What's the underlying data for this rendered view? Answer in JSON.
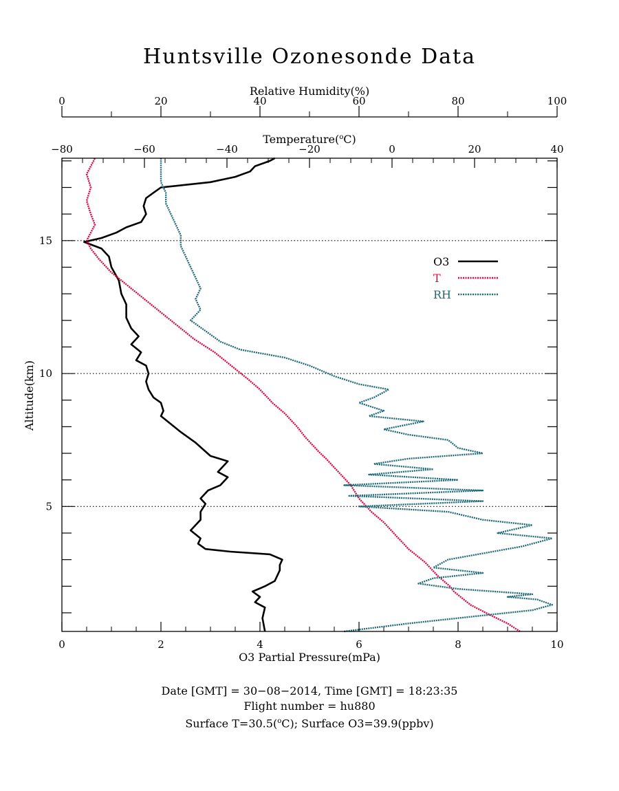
{
  "chart_data": {
    "type": "line",
    "title": "Huntsville Ozonesonde Data",
    "axes": {
      "bottom": {
        "label": "O3 Partial Pressure(mPa)",
        "min": 0,
        "max": 10,
        "ticks": [
          0,
          2,
          4,
          6,
          8,
          10
        ],
        "tick_labels": [
          "0",
          "2",
          "4",
          "6",
          "8",
          "10"
        ]
      },
      "top_rh": {
        "label": "Relative Humidity(%)",
        "min": 0,
        "max": 100,
        "ticks": [
          0,
          20,
          40,
          60,
          80,
          100
        ],
        "tick_labels": [
          "0",
          "20",
          "40",
          "60",
          "80",
          "100"
        ]
      },
      "top_temp": {
        "label": "Temperature(",
        "label_sup": "o",
        "label_end": "C)",
        "min": -80,
        "max": 40,
        "ticks": [
          -80,
          -60,
          -40,
          -20,
          0,
          20,
          40
        ],
        "tick_labels": [
          "−80",
          "−60",
          "−40",
          "−20",
          "0",
          "20",
          "40"
        ]
      },
      "left": {
        "label": "Altitude(km)",
        "min": 0.3,
        "max": 18.1,
        "ticks": [
          5,
          10,
          15
        ],
        "tick_labels": [
          "5",
          "10",
          "15"
        ]
      }
    },
    "reference_lines_km": [
      5,
      10,
      15
    ],
    "legend": {
      "placement": "right-middle",
      "entries": [
        {
          "label": "O3",
          "color": "#000000",
          "style": "solid"
        },
        {
          "label": "T",
          "color": "#e8003c",
          "style": "dotted"
        },
        {
          "label": "RH",
          "color": "#1e6a78",
          "style": "dotted"
        }
      ]
    },
    "series": [
      {
        "name": "O3",
        "units": "mPa",
        "color": "#000000",
        "points": [
          [
            4.1,
            0.3
          ],
          [
            4.05,
            0.8
          ],
          [
            4.1,
            1.2
          ],
          [
            3.9,
            1.4
          ],
          [
            4.0,
            1.6
          ],
          [
            3.85,
            1.8
          ],
          [
            4.1,
            2.0
          ],
          [
            4.3,
            2.2
          ],
          [
            4.4,
            2.6
          ],
          [
            4.4,
            2.8
          ],
          [
            4.45,
            3.0
          ],
          [
            4.2,
            3.2
          ],
          [
            3.4,
            3.3
          ],
          [
            2.9,
            3.4
          ],
          [
            2.75,
            3.6
          ],
          [
            2.8,
            3.8
          ],
          [
            2.6,
            4.1
          ],
          [
            2.7,
            4.3
          ],
          [
            2.8,
            4.5
          ],
          [
            2.8,
            4.8
          ],
          [
            2.9,
            5.1
          ],
          [
            2.8,
            5.3
          ],
          [
            2.95,
            5.6
          ],
          [
            3.2,
            5.8
          ],
          [
            3.35,
            6.1
          ],
          [
            3.15,
            6.3
          ],
          [
            3.3,
            6.6
          ],
          [
            3.35,
            6.7
          ],
          [
            3.0,
            6.9
          ],
          [
            2.7,
            7.4
          ],
          [
            2.4,
            7.8
          ],
          [
            2.2,
            8.1
          ],
          [
            2.0,
            8.4
          ],
          [
            2.05,
            8.6
          ],
          [
            2.0,
            8.9
          ],
          [
            1.85,
            9.1
          ],
          [
            1.75,
            9.4
          ],
          [
            1.7,
            9.7
          ],
          [
            1.75,
            10.0
          ],
          [
            1.7,
            10.3
          ],
          [
            1.5,
            10.5
          ],
          [
            1.6,
            10.8
          ],
          [
            1.4,
            11.1
          ],
          [
            1.55,
            11.4
          ],
          [
            1.4,
            11.7
          ],
          [
            1.3,
            12.1
          ],
          [
            1.3,
            12.6
          ],
          [
            1.2,
            13.0
          ],
          [
            1.15,
            13.5
          ],
          [
            1.0,
            14.0
          ],
          [
            0.95,
            14.4
          ],
          [
            0.8,
            14.7
          ],
          [
            0.45,
            14.95
          ],
          [
            0.8,
            15.1
          ],
          [
            1.1,
            15.3
          ],
          [
            1.3,
            15.5
          ],
          [
            1.6,
            15.7
          ],
          [
            1.7,
            16.0
          ],
          [
            1.65,
            16.3
          ],
          [
            1.7,
            16.6
          ],
          [
            1.85,
            16.8
          ],
          [
            2.0,
            17.0
          ],
          [
            2.5,
            17.1
          ],
          [
            3.0,
            17.2
          ],
          [
            3.5,
            17.4
          ],
          [
            3.8,
            17.6
          ],
          [
            3.9,
            17.8
          ],
          [
            4.2,
            18.0
          ],
          [
            4.3,
            18.1
          ]
        ]
      },
      {
        "name": "T",
        "units": "°C",
        "color": "#e8003c",
        "points": [
          [
            31,
            0.3
          ],
          [
            28,
            0.6
          ],
          [
            24,
            0.9
          ],
          [
            19,
            1.3
          ],
          [
            15,
            1.8
          ],
          [
            14,
            2.0
          ],
          [
            11,
            2.4
          ],
          [
            8,
            2.9
          ],
          [
            4,
            3.4
          ],
          [
            1,
            3.9
          ],
          [
            -2,
            4.4
          ],
          [
            -5,
            4.8
          ],
          [
            -8,
            5.3
          ],
          [
            -10,
            5.8
          ],
          [
            -13,
            6.3
          ],
          [
            -16,
            6.8
          ],
          [
            -18,
            7.1
          ],
          [
            -21,
            7.6
          ],
          [
            -23,
            8.0
          ],
          [
            -26,
            8.5
          ],
          [
            -29,
            8.9
          ],
          [
            -32,
            9.4
          ],
          [
            -35,
            9.8
          ],
          [
            -39,
            10.3
          ],
          [
            -43,
            10.8
          ],
          [
            -48,
            11.3
          ],
          [
            -52,
            11.8
          ],
          [
            -56,
            12.3
          ],
          [
            -60,
            12.8
          ],
          [
            -64,
            13.3
          ],
          [
            -68,
            13.8
          ],
          [
            -71,
            14.3
          ],
          [
            -73,
            14.7
          ],
          [
            -74,
            15.0
          ],
          [
            -73,
            15.3
          ],
          [
            -72,
            15.6
          ],
          [
            -73,
            16.0
          ],
          [
            -74,
            16.5
          ],
          [
            -73,
            17.0
          ],
          [
            -74,
            17.5
          ],
          [
            -72,
            18.1
          ]
        ]
      },
      {
        "name": "RH",
        "units": "%",
        "color": "#1e6a78",
        "points": [
          [
            57,
            0.3
          ],
          [
            70,
            0.6
          ],
          [
            85,
            0.9
          ],
          [
            95,
            1.1
          ],
          [
            99,
            1.3
          ],
          [
            96,
            1.5
          ],
          [
            90,
            1.6
          ],
          [
            95,
            1.7
          ],
          [
            80,
            1.9
          ],
          [
            72,
            2.1
          ],
          [
            75,
            2.3
          ],
          [
            85,
            2.5
          ],
          [
            75,
            2.7
          ],
          [
            78,
            3.0
          ],
          [
            87,
            3.3
          ],
          [
            93,
            3.5
          ],
          [
            99,
            3.8
          ],
          [
            88,
            4.0
          ],
          [
            95,
            4.3
          ],
          [
            85,
            4.5
          ],
          [
            78,
            4.8
          ],
          [
            60,
            5.0
          ],
          [
            85,
            5.2
          ],
          [
            58,
            5.4
          ],
          [
            85,
            5.6
          ],
          [
            57,
            5.8
          ],
          [
            80,
            6.0
          ],
          [
            62,
            6.2
          ],
          [
            75,
            6.4
          ],
          [
            63,
            6.6
          ],
          [
            70,
            6.8
          ],
          [
            85,
            7.0
          ],
          [
            80,
            7.2
          ],
          [
            78,
            7.5
          ],
          [
            70,
            7.7
          ],
          [
            65,
            7.9
          ],
          [
            73,
            8.2
          ],
          [
            62,
            8.4
          ],
          [
            65,
            8.6
          ],
          [
            60,
            8.9
          ],
          [
            63,
            9.1
          ],
          [
            66,
            9.4
          ],
          [
            60,
            9.6
          ],
          [
            55,
            9.9
          ],
          [
            50,
            10.3
          ],
          [
            45,
            10.6
          ],
          [
            36,
            10.9
          ],
          [
            32,
            11.2
          ],
          [
            29,
            11.6
          ],
          [
            26,
            12.0
          ],
          [
            28,
            12.4
          ],
          [
            27,
            12.8
          ],
          [
            28,
            13.2
          ],
          [
            27,
            13.6
          ],
          [
            26,
            14.0
          ],
          [
            25,
            14.4
          ],
          [
            24,
            14.8
          ],
          [
            24,
            15.2
          ],
          [
            23,
            15.6
          ],
          [
            22,
            16.0
          ],
          [
            21,
            16.4
          ],
          [
            21,
            16.8
          ],
          [
            20,
            17.2
          ],
          [
            20,
            17.6
          ],
          [
            20,
            18.1
          ]
        ]
      }
    ]
  },
  "footer": {
    "line1": "Date [GMT] = 30−08−2014,  Time [GMT] = 18:23:35",
    "line2": "Flight number = hu880",
    "line3a": "Surface T=30.5(",
    "line3sup": "o",
    "line3b": "C); Surface O3=39.9(ppbv)"
  }
}
